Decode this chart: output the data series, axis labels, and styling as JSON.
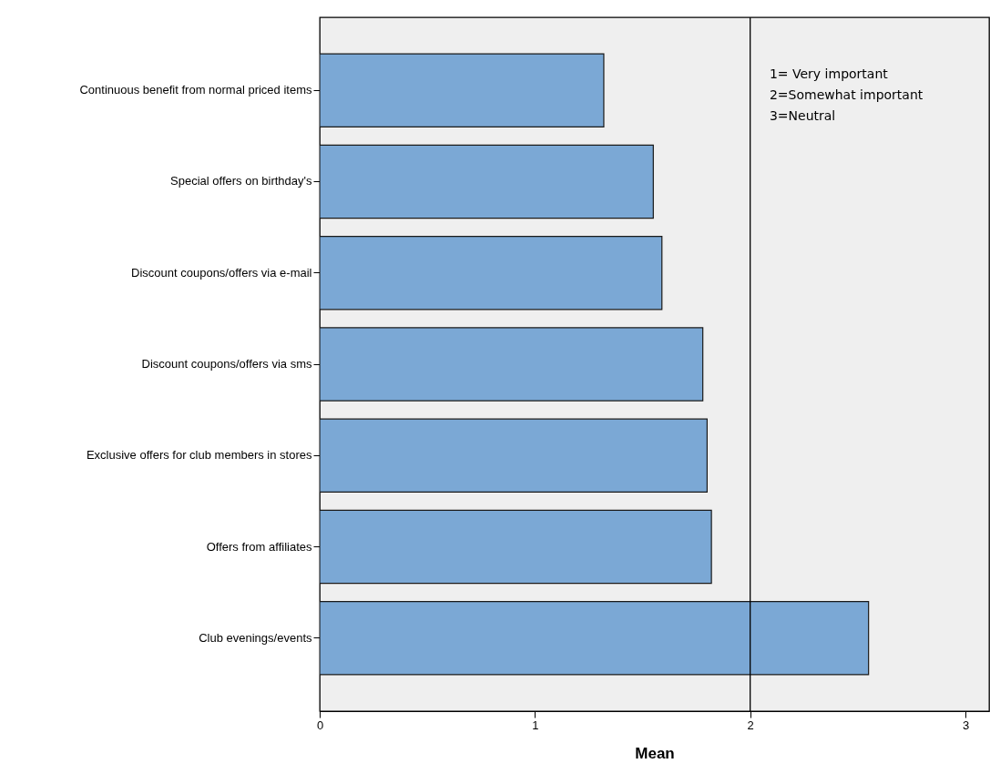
{
  "chart_data": {
    "type": "bar",
    "orientation": "horizontal",
    "xlabel": "Mean",
    "categories": [
      "Continuous benefit from normal priced items",
      "Special offers on birthday's",
      "Discount coupons/offers via e-mail",
      "Discount coupons/offers via sms",
      "Exclusive offers for club members in stores",
      "Offers from affiliates",
      "Club evenings/events"
    ],
    "values": [
      1.32,
      1.55,
      1.59,
      1.78,
      1.8,
      1.82,
      2.55
    ],
    "color": "#7ba8d5",
    "xlim": [
      0,
      3.11
    ],
    "xticks": [
      0,
      1,
      2,
      3
    ],
    "grid": false,
    "ref_lines": [
      {
        "axis": "x",
        "value": 2,
        "color": "#000000"
      }
    ],
    "annotations": [
      "1= Very important",
      "2=Somewhat important",
      "3=Neutral"
    ]
  }
}
